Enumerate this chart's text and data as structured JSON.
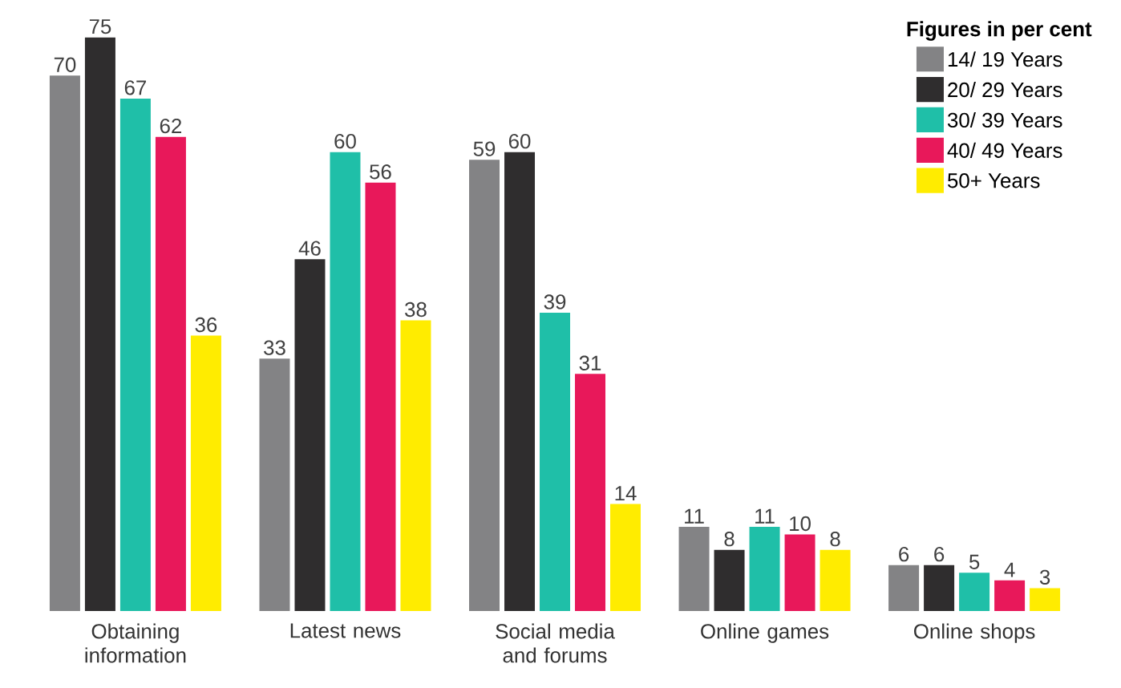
{
  "chart_data": {
    "type": "bar",
    "legend_title": "Figures in per cent",
    "categories": [
      "Obtaining information",
      "Latest news",
      "Social media and forums",
      "Online games",
      "Online shops"
    ],
    "series": [
      {
        "name": "14/ 19 Years",
        "color": "#838385",
        "values": [
          70,
          33,
          59,
          11,
          6
        ]
      },
      {
        "name": "20/ 29 Years",
        "color": "#2f2d2e",
        "values": [
          75,
          46,
          60,
          8,
          6
        ]
      },
      {
        "name": "30/ 39 Years",
        "color": "#1fbfa8",
        "values": [
          67,
          60,
          39,
          11,
          5
        ]
      },
      {
        "name": "40/ 49 Years",
        "color": "#e8185a",
        "values": [
          62,
          56,
          31,
          10,
          4
        ]
      },
      {
        "name": "50+ Years",
        "color": "#ffec00",
        "values": [
          36,
          38,
          14,
          8,
          3
        ]
      }
    ],
    "data_labels": true,
    "legend": "top right"
  }
}
